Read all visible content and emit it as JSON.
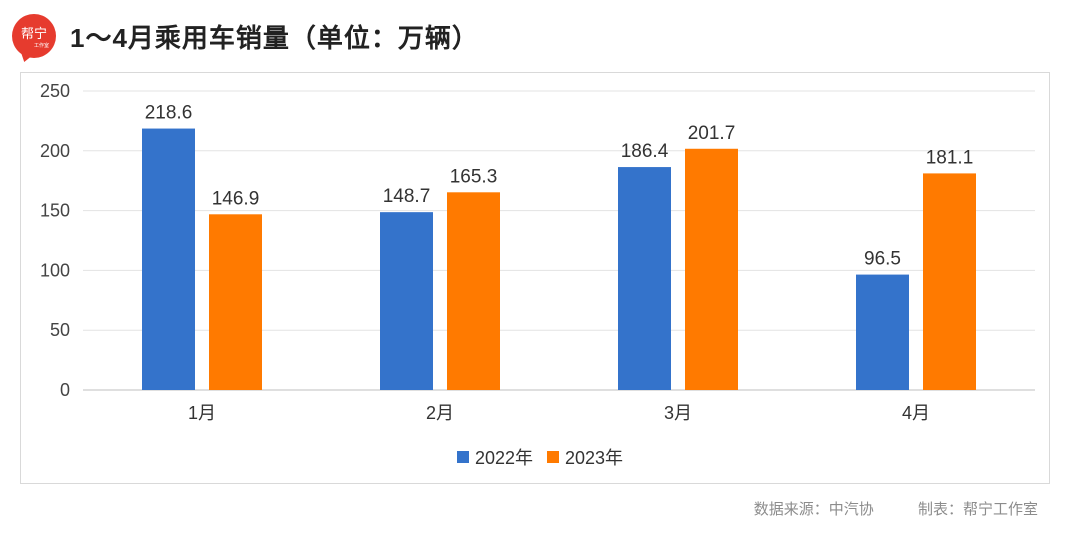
{
  "logo": {
    "text": "帮宁",
    "mini": "工作室"
  },
  "header": {
    "title": "1～4月乘用车销量（单位：万辆）"
  },
  "chart_data": {
    "type": "bar",
    "title": "1～4月乘用车销量（单位：万辆）",
    "categories": [
      "1月",
      "2月",
      "3月",
      "4月"
    ],
    "series": [
      {
        "name": "2022年",
        "values": [
          218.6,
          148.7,
          186.4,
          96.5
        ],
        "color": "#3473cb"
      },
      {
        "name": "2023年",
        "values": [
          146.9,
          165.3,
          201.7,
          181.1
        ],
        "color": "#ff7a00"
      }
    ],
    "ylim": [
      0,
      250
    ],
    "yticks": [
      0,
      50,
      100,
      150,
      200,
      250
    ],
    "grid": true,
    "legend": "bottom-center",
    "xlabel": "",
    "ylabel": ""
  },
  "footer": {
    "source": "数据来源：中汽协",
    "maker": "制表：帮宁工作室"
  }
}
